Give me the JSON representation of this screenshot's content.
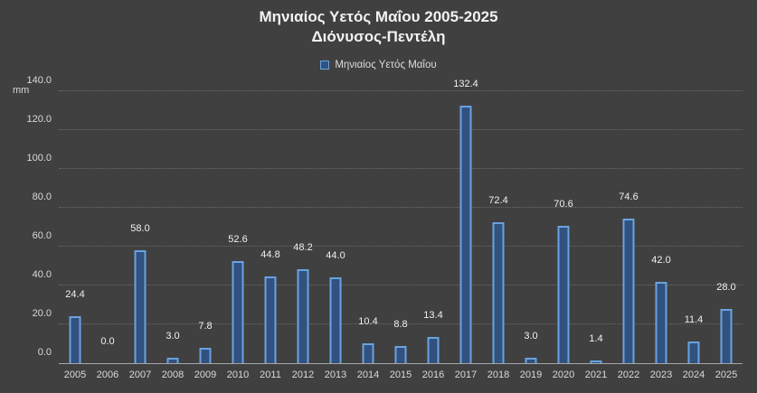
{
  "title_line1": "Μηνιαίος Υετός Μαΐου 2005-2025",
  "title_line2": "Διόνυσος-Πεντέλη",
  "legend_label": "Μηνιαίος Υετός  Μαΐου",
  "y_unit": "mm",
  "chart_data": {
    "type": "bar",
    "categories": [
      "2005",
      "2006",
      "2007",
      "2008",
      "2009",
      "2010",
      "2011",
      "2012",
      "2013",
      "2014",
      "2015",
      "2016",
      "2017",
      "2018",
      "2019",
      "2020",
      "2021",
      "2022",
      "2023",
      "2024",
      "2025"
    ],
    "values": [
      24.4,
      0.0,
      58.0,
      3.0,
      7.8,
      52.6,
      44.8,
      48.2,
      44.0,
      10.4,
      8.8,
      13.4,
      132.4,
      72.4,
      3.0,
      70.6,
      1.4,
      74.6,
      42.0,
      11.4,
      28.0
    ],
    "title": "Μηνιαίος Υετός Μαΐου 2005-2025 Διόνυσος-Πεντέλη",
    "xlabel": "",
    "ylabel": "mm",
    "ylim": [
      0,
      140
    ],
    "ytick_step": 20,
    "grid": true,
    "legend_position": "top",
    "series_name": "Μηνιαίος Υετός  Μαΐου",
    "bar_fill": "#31517f",
    "bar_border": "#6aa2e0",
    "background": "#404040",
    "text_color": "#e6e6e6"
  }
}
